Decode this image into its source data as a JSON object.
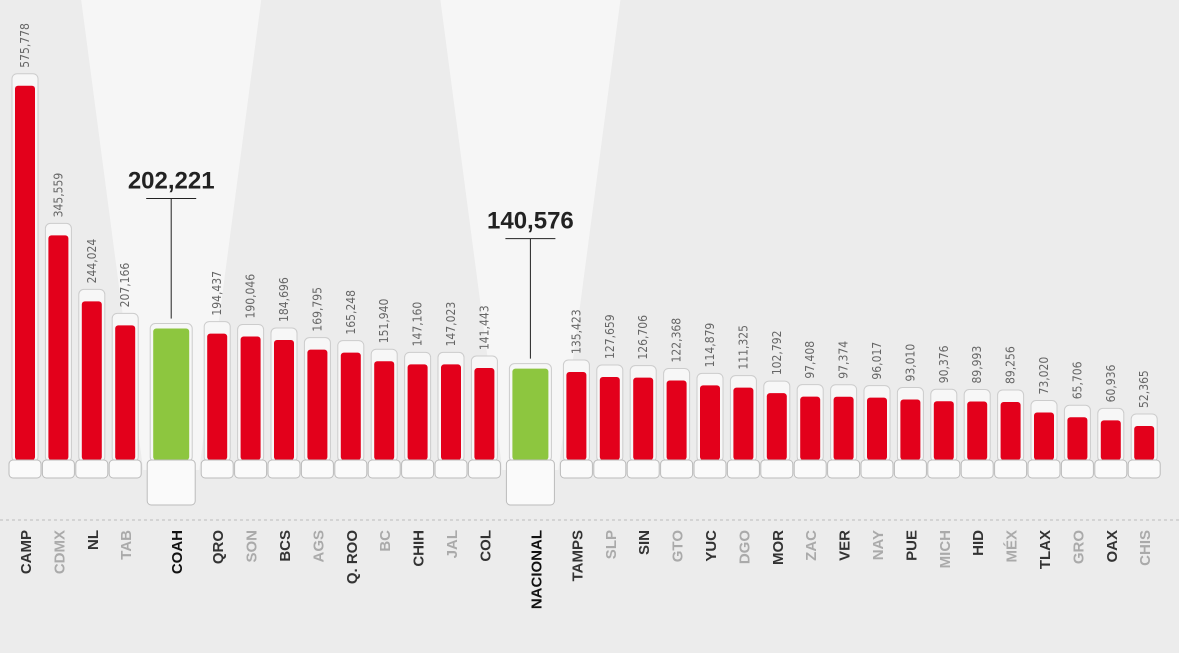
{
  "chart_data": {
    "type": "bar",
    "categories": [
      "CAMP",
      "CDMX",
      "NL",
      "TAB",
      "COAH",
      "QRO",
      "SON",
      "BCS",
      "AGS",
      "Q. ROO",
      "BC",
      "CHIH",
      "JAL",
      "COL",
      "NACIONAL",
      "TAMPS",
      "SLP",
      "SIN",
      "GTO",
      "YUC",
      "DGO",
      "MOR",
      "ZAC",
      "VER",
      "NAY",
      "PUE",
      "MICH",
      "HID",
      "MÉX",
      "TLAX",
      "GRO",
      "OAX",
      "CHIS"
    ],
    "values": [
      575778,
      345559,
      244024,
      207166,
      202221,
      194437,
      190046,
      184696,
      169795,
      165248,
      151940,
      147160,
      147023,
      141443,
      140576,
      135423,
      127659,
      126706,
      122368,
      114879,
      111325,
      102792,
      97408,
      97374,
      96017,
      93010,
      90376,
      89993,
      89256,
      73020,
      65706,
      60936,
      52365
    ],
    "value_labels": [
      "575,778",
      "345,559",
      "244,024",
      "207,166",
      "202,221",
      "194,437",
      "190,046",
      "184,696",
      "169,795",
      "165,248",
      "151,940",
      "147,160",
      "147,023",
      "141,443",
      "140,576",
      "135,423",
      "127,659",
      "126,706",
      "122,368",
      "114,879",
      "111,325",
      "102,792",
      "97,408",
      "97,374",
      "96,017",
      "93,010",
      "90,376",
      "89,993",
      "89,256",
      "73,020",
      "65,706",
      "60,936",
      "52,365"
    ],
    "colors": [
      "#e3001b",
      "#e3001b",
      "#e3001b",
      "#e3001b",
      "#8dc63f",
      "#e3001b",
      "#e3001b",
      "#e3001b",
      "#e3001b",
      "#e3001b",
      "#e3001b",
      "#e3001b",
      "#e3001b",
      "#e3001b",
      "#8dc63f",
      "#e3001b",
      "#e3001b",
      "#e3001b",
      "#e3001b",
      "#e3001b",
      "#e3001b",
      "#e3001b",
      "#e3001b",
      "#e3001b",
      "#e3001b",
      "#e3001b",
      "#e3001b",
      "#e3001b",
      "#e3001b",
      "#e3001b",
      "#e3001b",
      "#e3001b",
      "#e3001b"
    ],
    "label_colors": [
      "#333",
      "#aaa",
      "#333",
      "#aaa",
      "#111",
      "#333",
      "#aaa",
      "#333",
      "#aaa",
      "#333",
      "#aaa",
      "#333",
      "#aaa",
      "#333",
      "#111",
      "#333",
      "#aaa",
      "#333",
      "#aaa",
      "#333",
      "#aaa",
      "#333",
      "#aaa",
      "#333",
      "#aaa",
      "#333",
      "#aaa",
      "#333",
      "#aaa",
      "#333",
      "#aaa",
      "#333",
      "#aaa"
    ],
    "ylim": [
      0,
      600000
    ]
  }
}
